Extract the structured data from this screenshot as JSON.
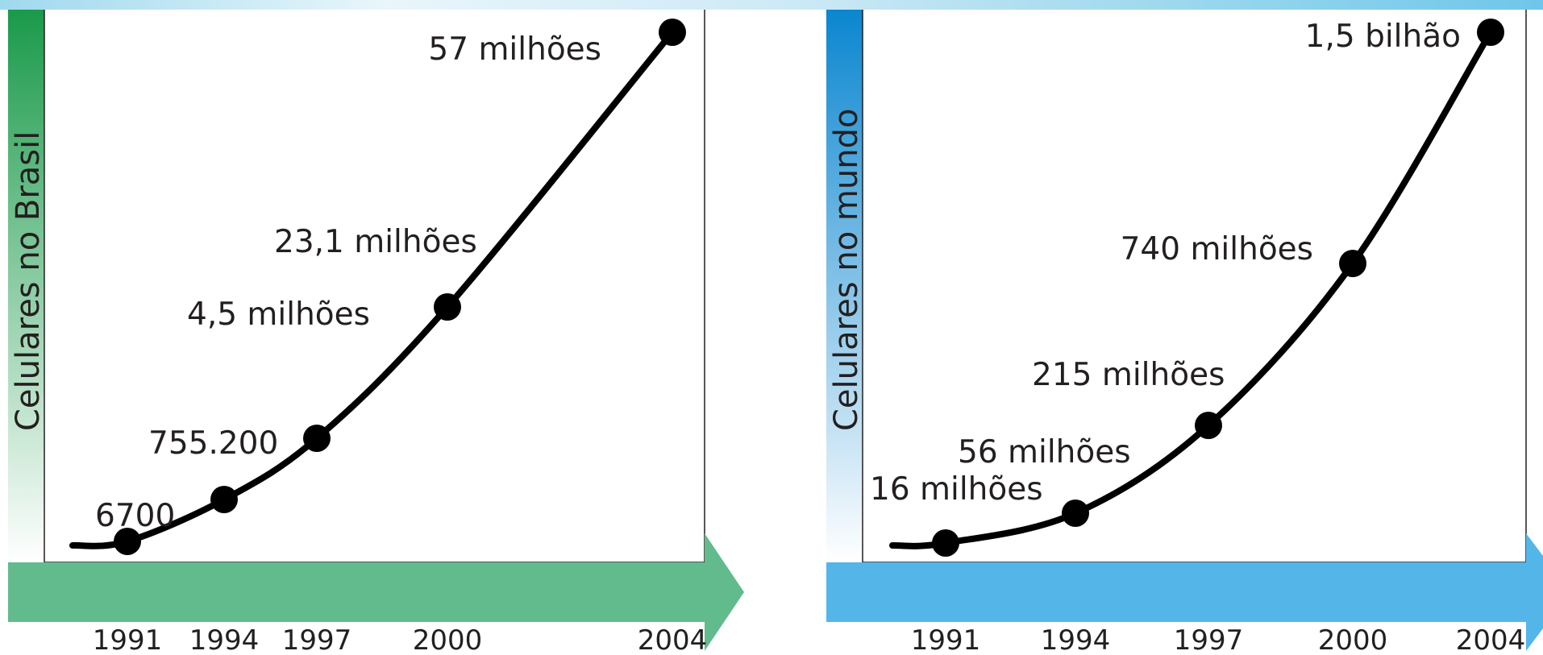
{
  "chart_data": [
    {
      "type": "line",
      "ylabel": "Celulares no Brasil",
      "xlabel": "",
      "x": [
        "1991",
        "1994",
        "1997",
        "2000",
        "2004"
      ],
      "values": [
        6700,
        755200,
        4500000,
        23100000,
        57000000
      ],
      "point_labels": [
        "6700",
        "755.200",
        "4,5 milhões",
        "23,1 milhões",
        "57 milhões"
      ],
      "scale": "non-linear, illustrative",
      "grid": false,
      "colors": {
        "ybar": "#1a9a4a",
        "arrow": "#62bb8c",
        "line": "#000000"
      }
    },
    {
      "type": "line",
      "ylabel": "Celulares no mundo",
      "xlabel": "",
      "x": [
        "1991",
        "1994",
        "1997",
        "2000",
        "2004"
      ],
      "values": [
        16000000,
        56000000,
        215000000,
        740000000,
        1500000000
      ],
      "point_labels": [
        "16 milhões",
        "56 milhões",
        "215 milhões",
        "740 milhões",
        "1,5 bilhão"
      ],
      "scale": "non-linear, illustrative",
      "grid": false,
      "colors": {
        "ybar": "#0a86d0",
        "arrow": "#54b5e8",
        "line": "#000000"
      }
    }
  ]
}
